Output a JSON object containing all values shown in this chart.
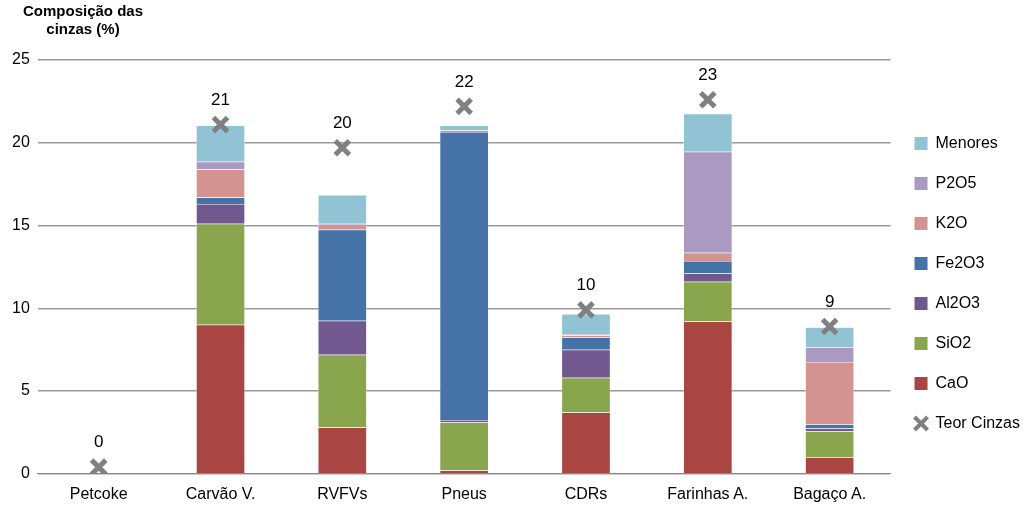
{
  "chart_data": {
    "type": "bar",
    "stacked": true,
    "ylabel": "Composição das cinzas (%)",
    "categories": [
      "Petcoke",
      "Carvão V.",
      "RVFVs",
      "Pneus",
      "CDRs",
      "Farinhas A.",
      "Bagaço A."
    ],
    "series": [
      {
        "name": "Teor Cinzas",
        "type": "scatter",
        "marker": "cross",
        "color": "#808080",
        "values": [
          0.4,
          21.1,
          19.7,
          22.2,
          9.9,
          22.6,
          8.9
        ],
        "value_labels": [
          "0",
          "21",
          "20",
          "22",
          "10",
          "23",
          "9"
        ]
      },
      {
        "name": "CaO",
        "color": "#a94643",
        "values": [
          0,
          9.0,
          2.8,
          0.2,
          3.7,
          9.2,
          1.0
        ]
      },
      {
        "name": "SiO2",
        "color": "#89a54e",
        "values": [
          0,
          6.1,
          4.4,
          2.9,
          2.1,
          2.4,
          1.55
        ]
      },
      {
        "name": "Al2O3",
        "color": "#71588f",
        "values": [
          0,
          1.2,
          2.05,
          0.15,
          1.7,
          0.5,
          0.2
        ]
      },
      {
        "name": "Fe2O3",
        "color": "#4572a7",
        "values": [
          0,
          0.4,
          5.5,
          17.4,
          0.75,
          0.75,
          0.25
        ]
      },
      {
        "name": "K2O",
        "color": "#d39390",
        "values": [
          0,
          1.7,
          0.3,
          0.1,
          0.1,
          0.5,
          3.75
        ]
      },
      {
        "name": "P2O5",
        "color": "#aa99c0",
        "values": [
          0,
          0.45,
          0.1,
          null,
          0.1,
          6.1,
          0.9
        ]
      },
      {
        "name": "Menores",
        "color": "#92c3d4",
        "values": [
          0,
          2.2,
          1.7,
          0.3,
          1.2,
          2.3,
          1.2
        ]
      }
    ],
    "ylim": [
      0,
      25
    ],
    "yticks": [
      0,
      5,
      10,
      15,
      20,
      25
    ],
    "grid": "y",
    "legend": "right"
  }
}
